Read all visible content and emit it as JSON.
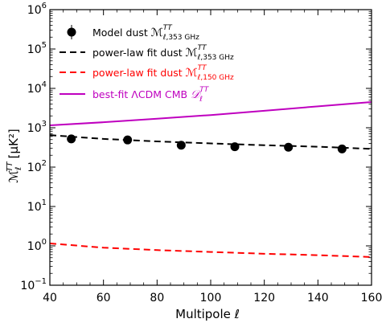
{
  "chart_data": {
    "type": "line",
    "xlabel": "Multipole ℓ",
    "ylabel": "[μK²]",
    "ylabel_symbol": "ℳ",
    "ylabel_sub": "ℓ",
    "ylabel_sup": "TT",
    "xlim": [
      40,
      160
    ],
    "ylim": [
      0.1,
      1000000
    ],
    "y_scale": "log",
    "x_ticks": [
      40,
      60,
      80,
      100,
      120,
      140,
      160
    ],
    "x_tick_labels": [
      "40",
      "60",
      "80",
      "100",
      "120",
      "140",
      "160"
    ],
    "y_ticks": [
      0.1,
      1,
      10,
      100,
      1000,
      10000,
      100000,
      1000000
    ],
    "y_tick_bases": [
      "10",
      "10",
      "10",
      "10",
      "10",
      "10",
      "10",
      "10"
    ],
    "y_tick_exps": [
      "−1",
      "0",
      "1",
      "2",
      "3",
      "4",
      "5",
      "6"
    ],
    "grid": false,
    "legend_position": "top-left",
    "series": [
      {
        "name": "Model dust",
        "legend_symbol": "ℳ",
        "legend_sub": "ℓ,353 GHz",
        "legend_sup": "TT",
        "style": "points-errorbars",
        "color": "#000000",
        "x": [
          48,
          69,
          89,
          109,
          129,
          149
        ],
        "y": [
          520,
          490,
          360,
          330,
          320,
          290
        ]
      },
      {
        "name": "power-law fit dust",
        "legend_symbol": "ℳ",
        "legend_sub": "ℓ,353 GHz",
        "legend_sup": "TT",
        "style": "dashed",
        "color": "#000000",
        "x": [
          40,
          60,
          80,
          100,
          120,
          140,
          160
        ],
        "y": [
          650,
          520,
          450,
          400,
          360,
          330,
          290
        ]
      },
      {
        "name": "power-law fit dust",
        "legend_symbol": "ℳ",
        "legend_sub": "ℓ,150 GHz",
        "legend_sup": "TT",
        "style": "dashed",
        "color": "#ff0000",
        "x": [
          40,
          60,
          80,
          100,
          120,
          140,
          160
        ],
        "y": [
          1.15,
          0.9,
          0.78,
          0.7,
          0.63,
          0.58,
          0.52
        ]
      },
      {
        "name": "best-fit ΛCDM CMB",
        "legend_symbol": "𝒟",
        "legend_sub": "ℓ",
        "legend_sup": "TT",
        "style": "solid",
        "color": "#bf00bf",
        "x": [
          40,
          60,
          80,
          100,
          120,
          140,
          160
        ],
        "y": [
          1150,
          1380,
          1700,
          2100,
          2700,
          3500,
          4500
        ]
      }
    ]
  }
}
